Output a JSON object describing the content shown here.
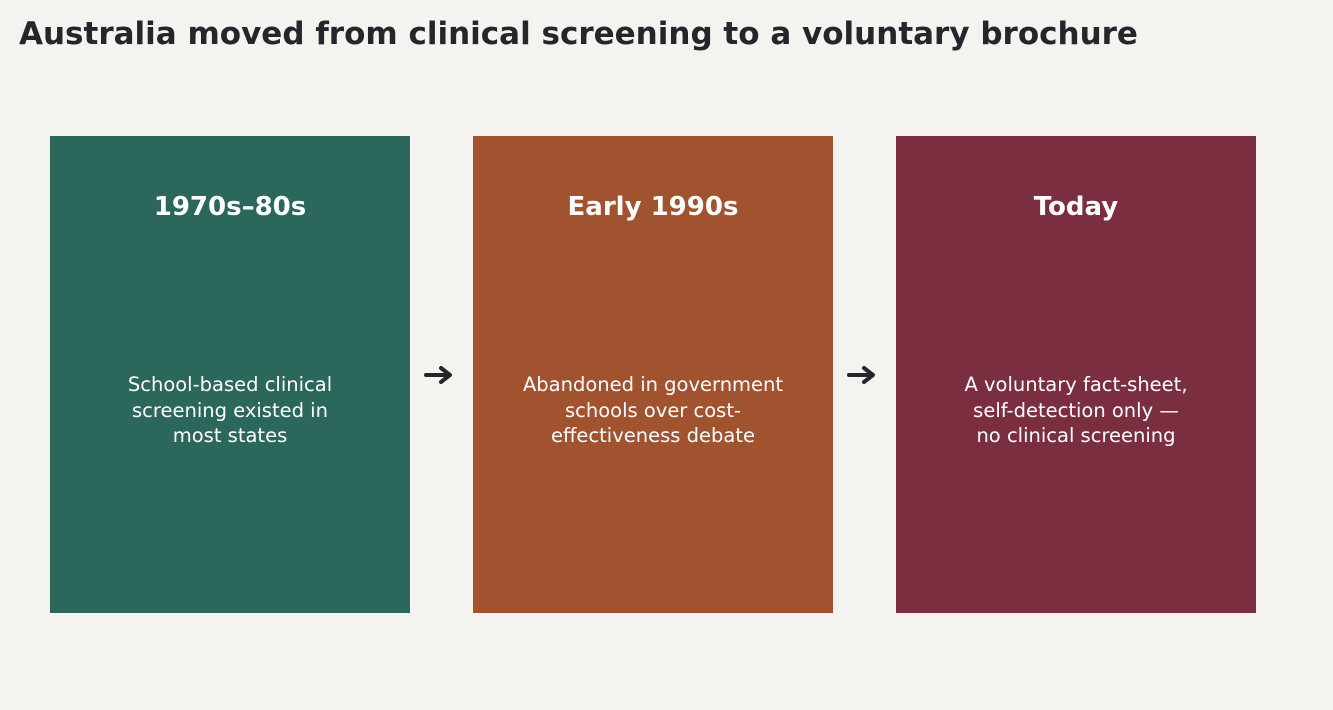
{
  "title": "Australia moved from clinical screening to a voluntary brochure",
  "stages": [
    {
      "heading": "1970s–80s",
      "body_lines": [
        "School-based clinical",
        "screening existed in",
        "most states"
      ],
      "color": "#2c675c"
    },
    {
      "heading": "Early 1990s",
      "body_lines": [
        "Abandoned in government",
        "schools over cost-",
        "effectiveness debate"
      ],
      "color": "#a1522f"
    },
    {
      "heading": "Today",
      "body_lines": [
        "A voluntary fact-sheet,",
        "self-detection only —",
        "no clinical screening"
      ],
      "color": "#7a2e40"
    }
  ],
  "colors": {
    "background": "#f4f3ef",
    "title_text": "#23262b",
    "arrow": "#23262b",
    "box_text": "#ffffff"
  },
  "icons": [
    "arrow-right-icon",
    "arrow-right-icon"
  ]
}
